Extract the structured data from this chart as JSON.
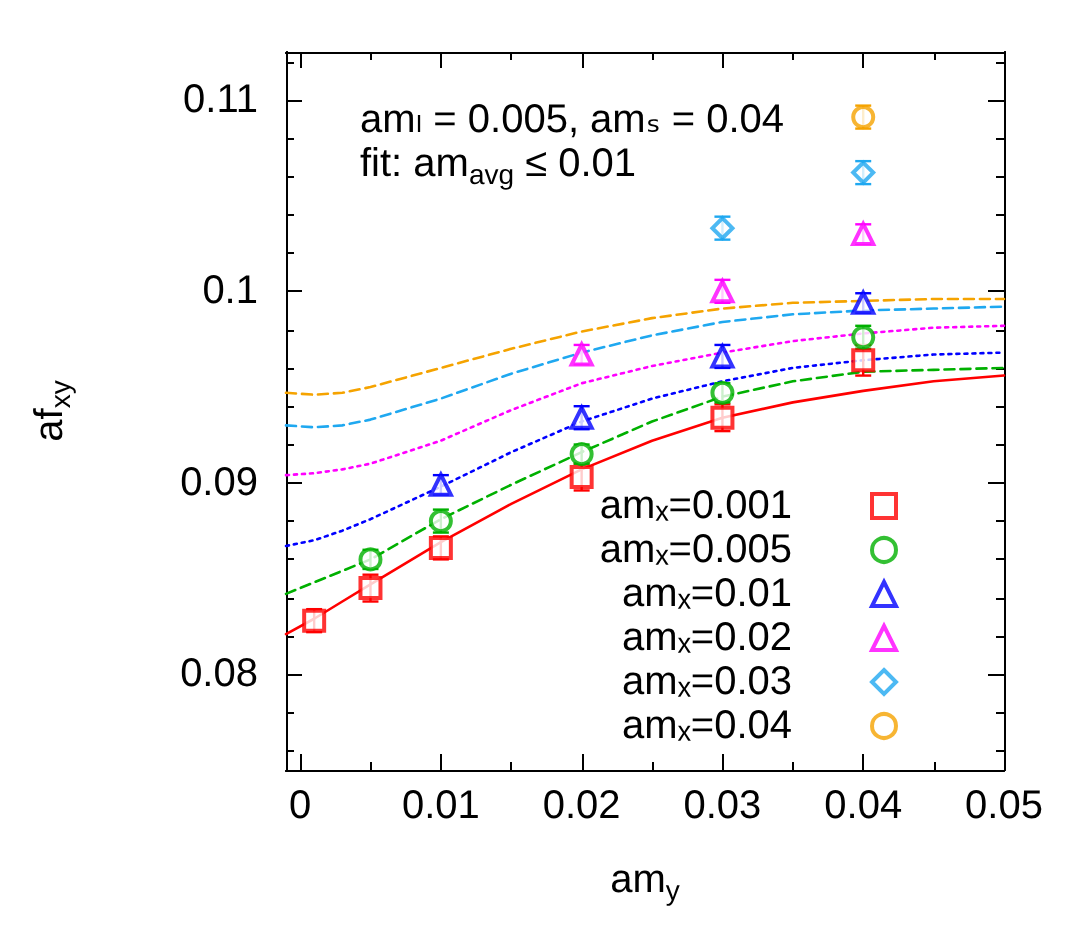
{
  "chart_data": {
    "type": "scatter",
    "xlabel": "am$_{y}$",
    "ylabel": "af$_{xy}$",
    "annotations": [
      "amₗ = 0.005, amₛ = 0.04",
      "fit: am$_{avg}$ ≤ 0.01"
    ],
    "xlim": [
      -0.001,
      0.05
    ],
    "xticks": [
      0,
      {
        "value": 0.005,
        "label": null
      },
      0.01,
      {
        "value": 0.015,
        "label": null
      },
      0.02,
      {
        "value": 0.025,
        "label": null
      },
      0.03,
      {
        "value": 0.035,
        "label": null
      },
      0.04,
      {
        "value": 0.045,
        "label": null
      },
      0.05
    ],
    "ylim": [
      0.075,
      0.1125
    ],
    "yticks": [
      {
        "value": 0.076,
        "label": null
      },
      {
        "value": 0.078,
        "label": null
      },
      0.08,
      {
        "value": 0.082,
        "label": null
      },
      {
        "value": 0.084,
        "label": null
      },
      {
        "value": 0.086,
        "label": null
      },
      {
        "value": 0.088,
        "label": null
      },
      0.09,
      {
        "value": 0.092,
        "label": null
      },
      {
        "value": 0.094,
        "label": null
      },
      {
        "value": 0.096,
        "label": null
      },
      {
        "value": 0.098,
        "label": null
      },
      0.1,
      {
        "value": 0.102,
        "label": null
      },
      {
        "value": 0.104,
        "label": null
      },
      {
        "value": 0.106,
        "label": null
      },
      {
        "value": 0.108,
        "label": null
      },
      0.11,
      {
        "value": 0.112,
        "label": null
      }
    ],
    "legend": "bottom right",
    "series": [
      {
        "name": "amₓ=0.001",
        "color": "#ff0000",
        "marker": "square",
        "x": [
          0.001,
          0.005,
          0.01,
          0.02,
          0.03,
          0.04
        ],
        "values": [
          0.0828,
          0.0845,
          0.0866,
          0.0903,
          0.0934,
          0.0964
        ],
        "errors": [
          0.0006,
          0.0007,
          0.0006,
          0.0007,
          0.0007,
          0.0008
        ]
      },
      {
        "name": "amₓ=0.005",
        "color": "#00b000",
        "marker": "circle",
        "x": [
          0.005,
          0.01,
          0.02,
          0.03,
          0.04
        ],
        "values": [
          0.086,
          0.088,
          0.0915,
          0.0947,
          0.0976
        ],
        "errors": [
          0.0005,
          0.0006,
          0.0005,
          0.0005,
          0.0006
        ]
      },
      {
        "name": "amₓ=0.01",
        "color": "#0000ff",
        "marker": "triangle",
        "x": [
          0.01,
          0.02,
          0.03,
          0.04
        ],
        "values": [
          0.0899,
          0.0934,
          0.0966,
          0.0994
        ],
        "errors": [
          0.0005,
          0.0006,
          0.0006,
          0.0005
        ]
      },
      {
        "name": "amₓ=0.02",
        "color": "#ff00ff",
        "marker": "triangle",
        "x": [
          0.02,
          0.03,
          0.04
        ],
        "values": [
          0.0967,
          0.1,
          0.103
        ],
        "errors": [
          0.0005,
          0.0006,
          0.0005
        ]
      },
      {
        "name": "amₓ=0.03",
        "color": "#1fa8f0",
        "marker": "diamond",
        "x": [
          0.03,
          0.04
        ],
        "values": [
          0.1033,
          0.1062
        ],
        "errors": [
          0.0006,
          0.0006
        ]
      },
      {
        "name": "amₓ=0.04",
        "color": "#f5a300",
        "marker": "circle",
        "x": [
          0.04
        ],
        "values": [
          0.1091
        ],
        "errors": [
          0.0006
        ]
      },
      {
        "type": "line",
        "color": "#ff0000",
        "line_style": "solid",
        "x": [
          -0.001,
          0.001,
          0.003,
          0.005,
          0.01,
          0.015,
          0.02,
          0.025,
          0.03,
          0.035,
          0.04,
          0.045,
          0.05
        ],
        "values": [
          0.0821,
          0.0829,
          0.0838,
          0.0847,
          0.0869,
          0.0889,
          0.0907,
          0.0922,
          0.0934,
          0.0942,
          0.0948,
          0.0953,
          0.0956
        ]
      },
      {
        "type": "line",
        "color": "#00b000",
        "line_style": "dashed",
        "x": [
          -0.001,
          0.001,
          0.003,
          0.005,
          0.01,
          0.015,
          0.02,
          0.025,
          0.03,
          0.035,
          0.04,
          0.045,
          0.05
        ],
        "values": [
          0.0842,
          0.0848,
          0.0854,
          0.086,
          0.0881,
          0.0899,
          0.0916,
          0.0932,
          0.0945,
          0.0953,
          0.0958,
          0.0959,
          0.096
        ]
      },
      {
        "type": "line",
        "color": "#0000ff",
        "line_style": "dotted",
        "x": [
          -0.001,
          0.001,
          0.003,
          0.005,
          0.01,
          0.015,
          0.02,
          0.025,
          0.03,
          0.035,
          0.04,
          0.045,
          0.05
        ],
        "values": [
          0.0867,
          0.087,
          0.0875,
          0.0881,
          0.0898,
          0.0916,
          0.0932,
          0.0944,
          0.0953,
          0.096,
          0.0964,
          0.0967,
          0.0968
        ]
      },
      {
        "type": "line",
        "color": "#ff00ff",
        "line_style": "dotted",
        "x": [
          -0.001,
          0.001,
          0.003,
          0.005,
          0.01,
          0.015,
          0.02,
          0.025,
          0.03,
          0.035,
          0.04,
          0.045,
          0.05
        ],
        "values": [
          0.0904,
          0.0905,
          0.0907,
          0.091,
          0.0922,
          0.0938,
          0.0952,
          0.0961,
          0.0968,
          0.0974,
          0.0978,
          0.0981,
          0.0982
        ]
      },
      {
        "type": "line",
        "color": "#1fa8f0",
        "line_style": "dashed",
        "x": [
          -0.001,
          0.001,
          0.003,
          0.005,
          0.01,
          0.015,
          0.02,
          0.025,
          0.03,
          0.035,
          0.04,
          0.045,
          0.05
        ],
        "values": [
          0.093,
          0.0929,
          0.093,
          0.0933,
          0.0944,
          0.0957,
          0.0968,
          0.0977,
          0.0984,
          0.0988,
          0.099,
          0.0991,
          0.0992
        ]
      },
      {
        "type": "line",
        "color": "#f5a300",
        "line_style": "dashed",
        "x": [
          -0.001,
          0.001,
          0.003,
          0.005,
          0.01,
          0.015,
          0.02,
          0.025,
          0.03,
          0.035,
          0.04,
          0.045,
          0.05
        ],
        "values": [
          0.0947,
          0.0946,
          0.0947,
          0.095,
          0.096,
          0.097,
          0.0979,
          0.0986,
          0.0991,
          0.0994,
          0.0995,
          0.0996,
          0.0996
        ]
      }
    ]
  }
}
